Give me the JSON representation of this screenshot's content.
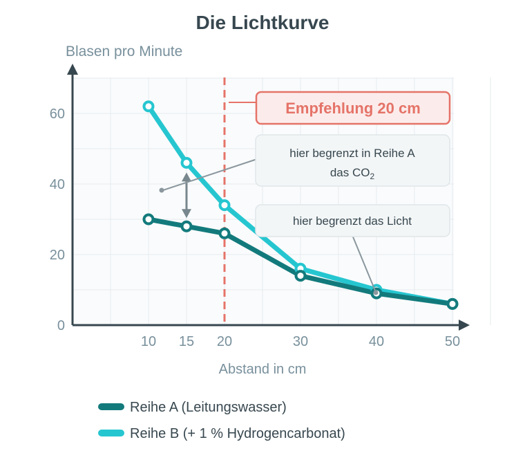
{
  "chart_data": {
    "type": "line",
    "title": "Die Lichtkurve",
    "ylabel": "Blasen pro Minute",
    "xlabel": "Abstand in cm",
    "x_ticks": [
      10,
      15,
      20,
      30,
      40,
      50
    ],
    "y_ticks": [
      0,
      20,
      40,
      60
    ],
    "xlim": [
      0,
      55
    ],
    "ylim": [
      0,
      70
    ],
    "grid": true,
    "legend_position": "bottom",
    "series": [
      {
        "name": "Reihe A (Leitungswasser)",
        "color": "#137a7c",
        "x": [
          10,
          15,
          20,
          30,
          40,
          50
        ],
        "y": [
          30,
          28,
          26,
          14,
          9,
          6
        ]
      },
      {
        "name": "Reihe B (+ 1 % Hydrogencarbonat)",
        "color": "#26c6d0",
        "x": [
          10,
          15,
          20,
          30,
          40,
          50
        ],
        "y": [
          62,
          46,
          34,
          16,
          10,
          6
        ]
      }
    ],
    "recommendation": {
      "x": 20,
      "label": "Empfehlung 20 cm",
      "color": "#e57368"
    },
    "annotations": [
      {
        "text_line1": "hier begrenzt in Reihe A",
        "text_line2_prefix": "das CO",
        "text_line2_sub": "2"
      },
      {
        "text": "hier begrenzt das Licht"
      }
    ]
  }
}
